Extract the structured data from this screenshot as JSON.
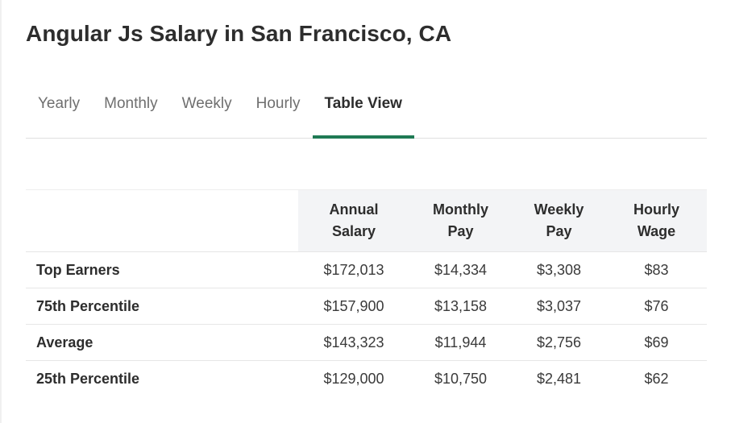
{
  "title": "Angular Js Salary in San Francisco, CA",
  "tabs": [
    {
      "label": "Yearly",
      "active": false
    },
    {
      "label": "Monthly",
      "active": false
    },
    {
      "label": "Weekly",
      "active": false
    },
    {
      "label": "Hourly",
      "active": false
    },
    {
      "label": "Table View",
      "active": true
    }
  ],
  "table": {
    "headers": [
      {
        "line1": "Annual",
        "line2": "Salary"
      },
      {
        "line1": "Monthly",
        "line2": "Pay"
      },
      {
        "line1": "Weekly",
        "line2": "Pay"
      },
      {
        "line1": "Hourly",
        "line2": "Wage"
      }
    ],
    "rows": [
      {
        "label": "Top Earners",
        "values": [
          "$172,013",
          "$14,334",
          "$3,308",
          "$83"
        ]
      },
      {
        "label": "75th Percentile",
        "values": [
          "$157,900",
          "$13,158",
          "$3,037",
          "$76"
        ]
      },
      {
        "label": "Average",
        "values": [
          "$143,323",
          "$11,944",
          "$2,756",
          "$69"
        ]
      },
      {
        "label": "25th Percentile",
        "values": [
          "$129,000",
          "$10,750",
          "$2,481",
          "$62"
        ]
      }
    ]
  },
  "colors": {
    "accent": "#1f7a54",
    "header_bg": "#f3f4f6",
    "text": "#2d2d2d",
    "muted": "#6f6f6f"
  }
}
